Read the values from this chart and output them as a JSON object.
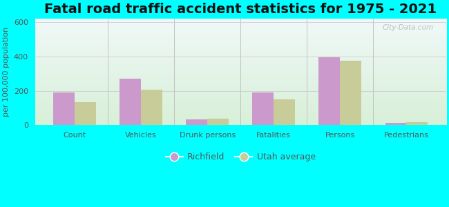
{
  "title": "Fatal road traffic accident statistics for 1975 - 2021",
  "ylabel": "per 100,000 population",
  "categories": [
    "Count",
    "Vehicles",
    "Drunk persons",
    "Fatalities",
    "Persons",
    "Pedestrians"
  ],
  "richfield_values": [
    190,
    270,
    33,
    190,
    395,
    13
  ],
  "utah_values": [
    135,
    207,
    37,
    150,
    375,
    15
  ],
  "richfield_color": "#cc99cc",
  "utah_color": "#c8cc99",
  "background_outer": "#00ffff",
  "background_plot_top": "#f0f8f8",
  "background_plot_bottom": "#d8f0d8",
  "ylim": [
    0,
    620
  ],
  "yticks": [
    0,
    200,
    400,
    600
  ],
  "title_fontsize": 14,
  "axis_label_fontsize": 8,
  "tick_fontsize": 8,
  "legend_fontsize": 9,
  "bar_width": 0.32,
  "watermark_text": "City-Data.com"
}
